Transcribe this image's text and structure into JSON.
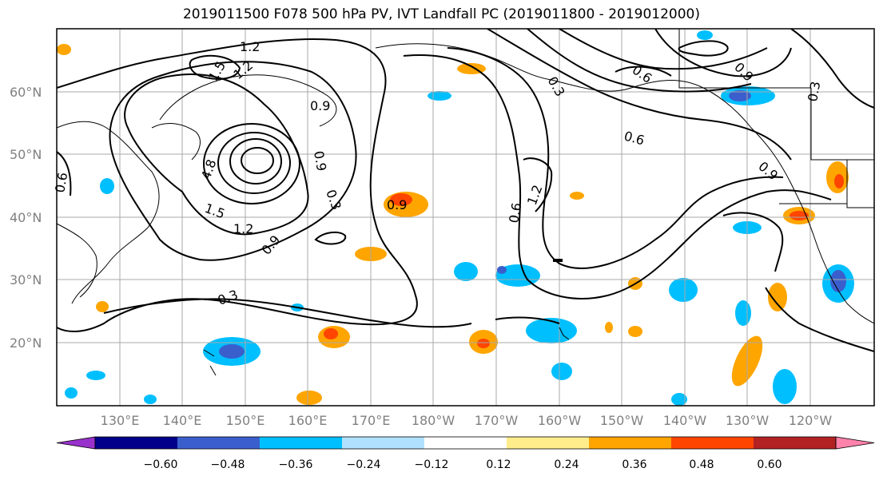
{
  "title": "2019011500 F078 500 hPa PV, IVT Landfall PC (2019011800 - 2019012000)",
  "lat_labels": [
    "60°N",
    "50°N",
    "40°N",
    "30°N",
    "20°N"
  ],
  "lon_labels": [
    "130°E",
    "140°E",
    "150°E",
    "160°E",
    "170°E",
    "180°W",
    "170°W",
    "160°W",
    "150°W",
    "140°W",
    "130°W",
    "120°W"
  ],
  "contour_labels": [
    "1.2",
    "1.5",
    "1.2",
    "0.9",
    "4.8",
    "1.5",
    "1.2",
    "0.9",
    "0.3",
    "0.9",
    "0.9",
    "1.2",
    "0.6",
    "0.3",
    "0.6",
    "0.9",
    "0.6",
    "0.9",
    "0.3",
    "0.3",
    "0.6"
  ],
  "colorbar": {
    "colors": [
      "#9932cc",
      "#00008b",
      "#3a5fcd",
      "#00bfff",
      "#b0e2ff",
      "#ffffff",
      "#ffec8b",
      "#ffa500",
      "#ff4500",
      "#b22222",
      "#ff82ab"
    ],
    "ticks": [
      "−0.60",
      "−0.48",
      "−0.36",
      "−0.24",
      "−0.12",
      "0.12",
      "0.24",
      "0.36",
      "0.48",
      "0.60"
    ]
  }
}
